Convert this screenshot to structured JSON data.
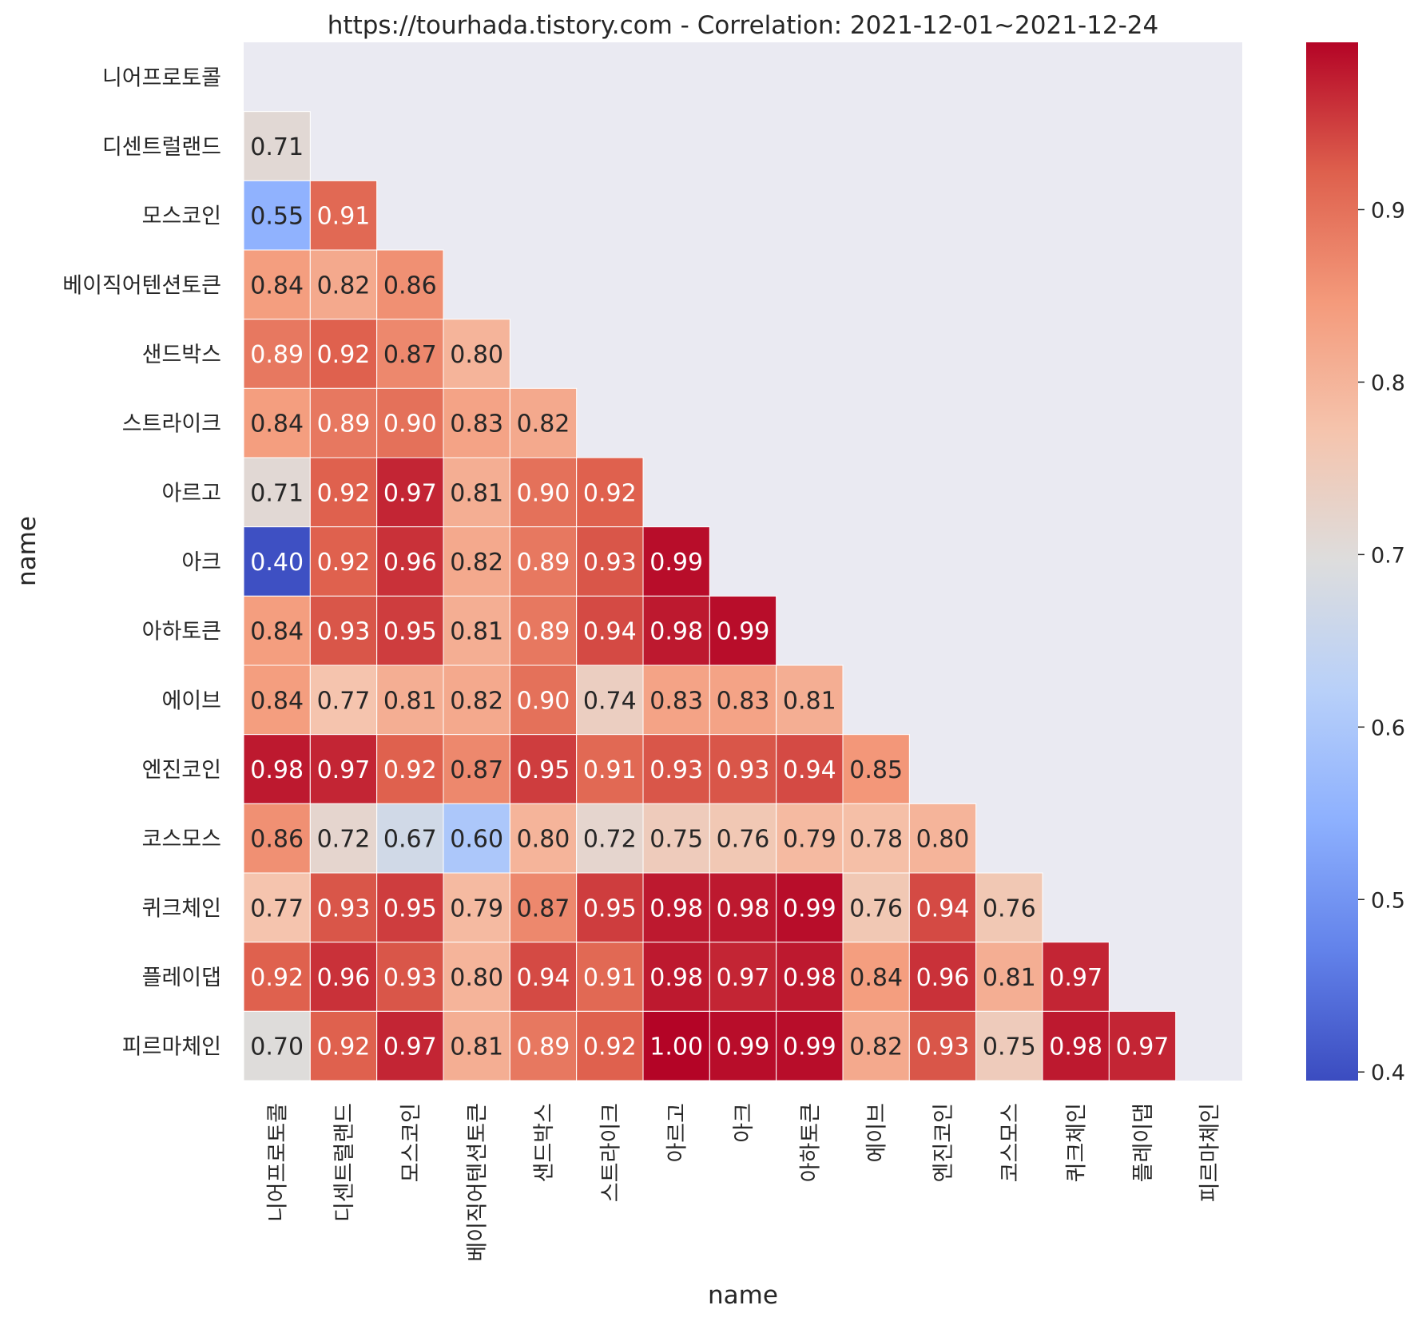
{
  "chart_data": {
    "type": "heatmap",
    "title": "https://tourhada.tistory.com - Correlation: 2021-12-01~2021-12-24",
    "xlabel": "name",
    "ylabel": "name",
    "labels": [
      "니어프로토콜",
      "디센트럴랜드",
      "모스코인",
      "베이직어텐션토큰",
      "샌드박스",
      "스트라이크",
      "아르고",
      "아크",
      "아하토큰",
      "에이브",
      "엔진코인",
      "코스모스",
      "퀴크체인",
      "플레이댑",
      "피르마체인"
    ],
    "mask": "upper-triangle-including-diagonal",
    "values": [
      [],
      [
        0.71
      ],
      [
        0.55,
        0.91
      ],
      [
        0.84,
        0.82,
        0.86
      ],
      [
        0.89,
        0.92,
        0.87,
        0.8
      ],
      [
        0.84,
        0.89,
        0.9,
        0.83,
        0.82
      ],
      [
        0.71,
        0.92,
        0.97,
        0.81,
        0.9,
        0.92
      ],
      [
        0.4,
        0.92,
        0.96,
        0.82,
        0.89,
        0.93,
        0.99
      ],
      [
        0.84,
        0.93,
        0.95,
        0.81,
        0.89,
        0.94,
        0.98,
        0.99
      ],
      [
        0.84,
        0.77,
        0.81,
        0.82,
        0.9,
        0.74,
        0.83,
        0.83,
        0.81
      ],
      [
        0.98,
        0.97,
        0.92,
        0.87,
        0.95,
        0.91,
        0.93,
        0.93,
        0.94,
        0.85
      ],
      [
        0.86,
        0.72,
        0.67,
        0.6,
        0.8,
        0.72,
        0.75,
        0.76,
        0.79,
        0.78,
        0.8
      ],
      [
        0.77,
        0.93,
        0.95,
        0.79,
        0.87,
        0.95,
        0.98,
        0.98,
        0.99,
        0.76,
        0.94,
        0.76
      ],
      [
        0.92,
        0.96,
        0.93,
        0.8,
        0.94,
        0.91,
        0.98,
        0.97,
        0.98,
        0.84,
        0.96,
        0.81,
        0.97
      ],
      [
        0.7,
        0.92,
        0.97,
        0.81,
        0.89,
        0.92,
        1.0,
        0.99,
        0.99,
        0.82,
        0.93,
        0.75,
        0.98,
        0.97
      ]
    ],
    "colormap": "coolwarm",
    "vmin": 0.395,
    "vmax": 0.997,
    "colorbar_ticks": [
      0.4,
      0.5,
      0.6,
      0.7,
      0.8,
      0.9
    ],
    "background_color": "#eaeaf2",
    "grid_color": "#ffffff"
  }
}
